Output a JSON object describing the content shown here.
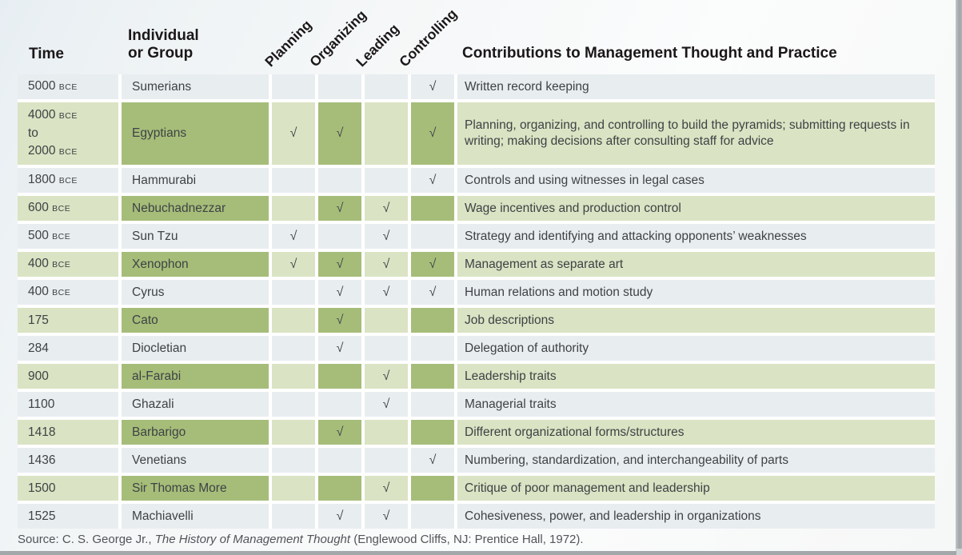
{
  "header": {
    "time": "Time",
    "individual_lines": [
      "Individual",
      "or Group"
    ],
    "functions": [
      "Planning",
      "Organizing",
      "Leading",
      "Controlling"
    ],
    "contributions": "Contributions to Management Thought and Practice"
  },
  "table": {
    "check_glyph": "√",
    "check_columns": [
      "planning",
      "organizing",
      "leading",
      "controlling"
    ],
    "rows": [
      {
        "green": false,
        "height": 31,
        "time_lines": [
          [
            {
              "text": "5000 "
            },
            {
              "text": "BCE",
              "small": true
            }
          ]
        ],
        "name": "Sumerians",
        "checks": {
          "planning": false,
          "organizing": false,
          "leading": false,
          "controlling": true
        },
        "contribution": "Written record keeping"
      },
      {
        "green": true,
        "height": 78,
        "time_lines": [
          [
            {
              "text": "4000 "
            },
            {
              "text": "BCE",
              "small": true
            }
          ],
          [
            {
              "text": "to"
            }
          ],
          [
            {
              "text": "2000 "
            },
            {
              "text": "BCE",
              "small": true
            }
          ]
        ],
        "name": "Egyptians",
        "checks": {
          "planning": true,
          "organizing": true,
          "leading": false,
          "controlling": true
        },
        "contribution": "Planning, organizing, and controlling to build the pyramids; submitting requests in writing; making decisions after consulting staff for advice"
      },
      {
        "green": false,
        "height": 31,
        "time_lines": [
          [
            {
              "text": "1800 "
            },
            {
              "text": "BCE",
              "small": true
            }
          ]
        ],
        "name": "Hammurabi",
        "checks": {
          "planning": false,
          "organizing": false,
          "leading": false,
          "controlling": true
        },
        "contribution": "Controls and using witnesses in legal cases"
      },
      {
        "green": true,
        "height": 31,
        "time_lines": [
          [
            {
              "text": "600 "
            },
            {
              "text": "BCE",
              "small": true
            }
          ]
        ],
        "name": "Nebuchadnezzar",
        "checks": {
          "planning": false,
          "organizing": true,
          "leading": true,
          "controlling": false
        },
        "contribution": "Wage incentives and production control"
      },
      {
        "green": false,
        "height": 31,
        "time_lines": [
          [
            {
              "text": "500 "
            },
            {
              "text": "BCE",
              "small": true
            }
          ]
        ],
        "name": "Sun Tzu",
        "checks": {
          "planning": true,
          "organizing": false,
          "leading": true,
          "controlling": false
        },
        "contribution": "Strategy and identifying and attacking opponents’ weaknesses"
      },
      {
        "green": true,
        "height": 31,
        "time_lines": [
          [
            {
              "text": "400 "
            },
            {
              "text": "BCE",
              "small": true
            }
          ]
        ],
        "name": "Xenophon",
        "checks": {
          "planning": true,
          "organizing": true,
          "leading": true,
          "controlling": true
        },
        "contribution": "Management as separate art"
      },
      {
        "green": false,
        "height": 31,
        "time_lines": [
          [
            {
              "text": "400 "
            },
            {
              "text": "BCE",
              "small": true
            }
          ]
        ],
        "name": "Cyrus",
        "checks": {
          "planning": false,
          "organizing": true,
          "leading": true,
          "controlling": true
        },
        "contribution": "Human relations and motion study"
      },
      {
        "green": true,
        "height": 31,
        "time_lines": [
          [
            {
              "text": "175"
            }
          ]
        ],
        "name": "Cato",
        "checks": {
          "planning": false,
          "organizing": true,
          "leading": false,
          "controlling": false
        },
        "contribution": "Job descriptions"
      },
      {
        "green": false,
        "height": 31,
        "time_lines": [
          [
            {
              "text": "284"
            }
          ]
        ],
        "name": "Diocletian",
        "checks": {
          "planning": false,
          "organizing": true,
          "leading": false,
          "controlling": false
        },
        "contribution": "Delegation of authority"
      },
      {
        "green": true,
        "height": 31,
        "time_lines": [
          [
            {
              "text": "900"
            }
          ]
        ],
        "name": "al-Farabi",
        "checks": {
          "planning": false,
          "organizing": false,
          "leading": true,
          "controlling": false
        },
        "contribution": "Leadership traits"
      },
      {
        "green": false,
        "height": 31,
        "time_lines": [
          [
            {
              "text": "1100"
            }
          ]
        ],
        "name": "Ghazali",
        "checks": {
          "planning": false,
          "organizing": false,
          "leading": true,
          "controlling": false
        },
        "contribution": "Managerial traits"
      },
      {
        "green": true,
        "height": 31,
        "time_lines": [
          [
            {
              "text": "1418"
            }
          ]
        ],
        "name": "Barbarigo",
        "checks": {
          "planning": false,
          "organizing": true,
          "leading": false,
          "controlling": false
        },
        "contribution": "Different organizational forms/structures"
      },
      {
        "green": false,
        "height": 31,
        "time_lines": [
          [
            {
              "text": "1436"
            }
          ]
        ],
        "name": "Venetians",
        "checks": {
          "planning": false,
          "organizing": false,
          "leading": false,
          "controlling": true
        },
        "contribution": "Numbering, standardization, and interchangeability of parts"
      },
      {
        "green": true,
        "height": 31,
        "time_lines": [
          [
            {
              "text": "1500"
            }
          ]
        ],
        "name": "Sir Thomas More",
        "checks": {
          "planning": false,
          "organizing": false,
          "leading": true,
          "controlling": false
        },
        "contribution": "Critique of poor management and leadership"
      },
      {
        "green": false,
        "height": 31,
        "time_lines": [
          [
            {
              "text": "1525"
            }
          ]
        ],
        "name": "Machiavelli",
        "checks": {
          "planning": false,
          "organizing": true,
          "leading": true,
          "controlling": false
        },
        "contribution": "Cohesiveness, power, and leadership in organizations"
      }
    ]
  },
  "source": {
    "prefix": "Source: C. S. George Jr., ",
    "title": "The History of Management Thought",
    "suffix": " (Englewood Cliffs, NJ: Prentice Hall, 1972)."
  },
  "colors": {
    "row_gray": "#e8edf0",
    "row_light_green": "#dae3c3",
    "cell_dark_green": "#a6bd79",
    "header_text": "#1b1718",
    "body_text": "#3e4245"
  }
}
